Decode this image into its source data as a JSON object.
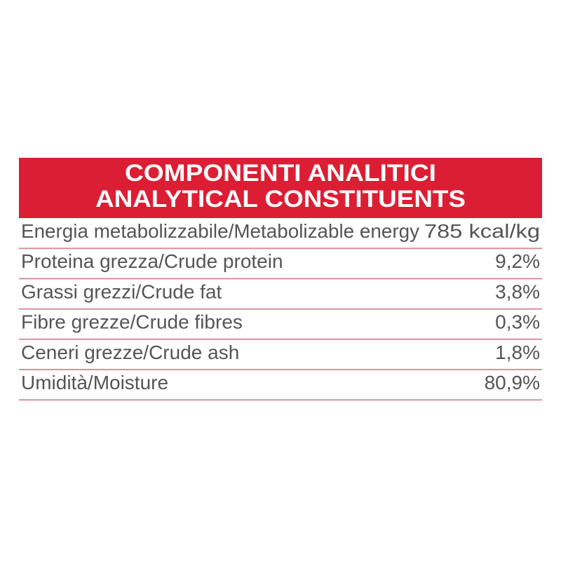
{
  "header": {
    "title_it": "COMPONENTI ANALITICI",
    "title_en": "ANALYTICAL CONSTITUENTS"
  },
  "table": {
    "rows": [
      [
        "Energia metabolizzabile/Metabolizable energy",
        "785 kcal/kg"
      ],
      [
        "Proteina grezza/Crude protein",
        "9,2%"
      ],
      [
        "Grassi grezzi/Crude fat",
        "3,8%"
      ],
      [
        "Fibre grezze/Crude fibres",
        "0,3%"
      ],
      [
        "Ceneri grezze/Crude ash",
        "1,8%"
      ],
      [
        "Umidità/Moisture",
        "80,9%"
      ]
    ]
  }
}
